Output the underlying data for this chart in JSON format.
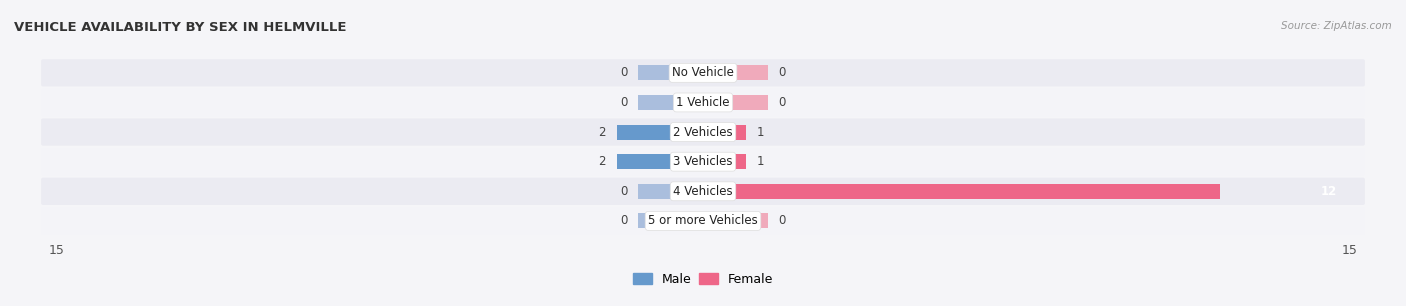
{
  "title": "VEHICLE AVAILABILITY BY SEX IN HELMVILLE",
  "source": "Source: ZipAtlas.com",
  "categories": [
    "No Vehicle",
    "1 Vehicle",
    "2 Vehicles",
    "3 Vehicles",
    "4 Vehicles",
    "5 or more Vehicles"
  ],
  "male_values": [
    0,
    0,
    2,
    2,
    0,
    0
  ],
  "female_values": [
    0,
    0,
    1,
    1,
    12,
    0
  ],
  "male_color": "#6699CC",
  "female_color": "#EE6688",
  "male_color_light": "#AABEDD",
  "female_color_light": "#F0AABB",
  "row_bg_odd": "#ebebf2",
  "row_bg_even": "#f4f4f8",
  "fig_bg": "#f5f5f8",
  "xlim": 15,
  "min_bar_stub": 1.5,
  "fig_width": 14.06,
  "fig_height": 3.06,
  "dpi": 100
}
